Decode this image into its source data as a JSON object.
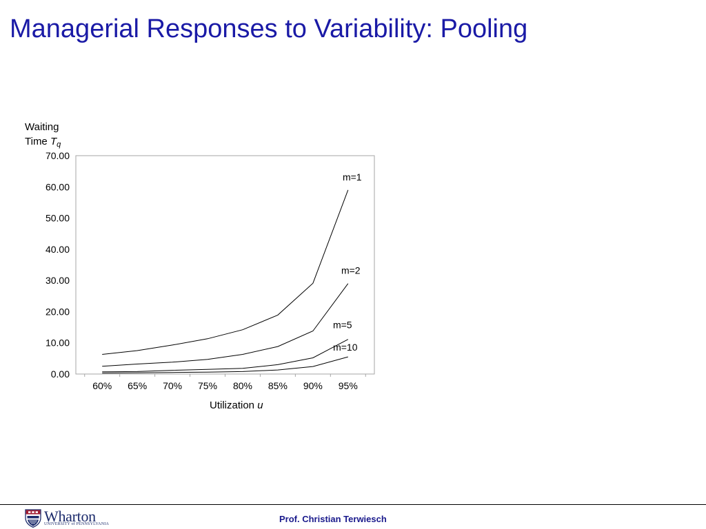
{
  "slide": {
    "title": "Managerial Responses to Variability: Pooling",
    "footer_author": "Prof. Christian Terwiesch"
  },
  "logo": {
    "word": "Wharton",
    "subtitle": "UNIVERSITY of PENNSYLVANIA",
    "icon": "penn-shield-icon",
    "colors": {
      "navy": "#1b2a6b",
      "red": "#a31f34"
    }
  },
  "colors": {
    "title": "#1a1aa6",
    "footer_text": "#1a1a8c",
    "series_line": "#000000"
  },
  "chart_data": {
    "type": "line",
    "title": "",
    "ylabel_line1": "Waiting",
    "ylabel_line2_prefix": "Time ",
    "ylabel_symbol": "T",
    "ylabel_subscript": "q",
    "xlabel_prefix": "Utilization ",
    "xlabel_symbol": "u",
    "categories": [
      "60%",
      "65%",
      "70%",
      "75%",
      "80%",
      "85%",
      "90%",
      "95%"
    ],
    "x": [
      0.6,
      0.65,
      0.7,
      0.75,
      0.8,
      0.85,
      0.9,
      0.95
    ],
    "xlim": [
      0.5625,
      0.9875
    ],
    "ylim": [
      0,
      70
    ],
    "yticks": [
      "0.00",
      "10.00",
      "20.00",
      "30.00",
      "40.00",
      "50.00",
      "60.00",
      "70.00"
    ],
    "ytick_values": [
      0,
      10,
      20,
      30,
      40,
      50,
      60,
      70
    ],
    "grid": false,
    "legend": "inline labels at line ends",
    "series": [
      {
        "name": "m=1",
        "values": [
          6.3,
          7.5,
          9.3,
          11.3,
          14.2,
          18.9,
          29.1,
          59.0
        ]
      },
      {
        "name": "m=2",
        "values": [
          2.5,
          3.2,
          3.8,
          4.7,
          6.3,
          8.8,
          13.8,
          29.0
        ]
      },
      {
        "name": "m=5",
        "values": [
          0.7,
          0.8,
          1.2,
          1.5,
          1.8,
          3.0,
          5.2,
          11.1
        ]
      },
      {
        "name": "m=10",
        "values": [
          0.3,
          0.4,
          0.5,
          0.6,
          0.8,
          1.3,
          2.4,
          5.5
        ]
      }
    ]
  }
}
